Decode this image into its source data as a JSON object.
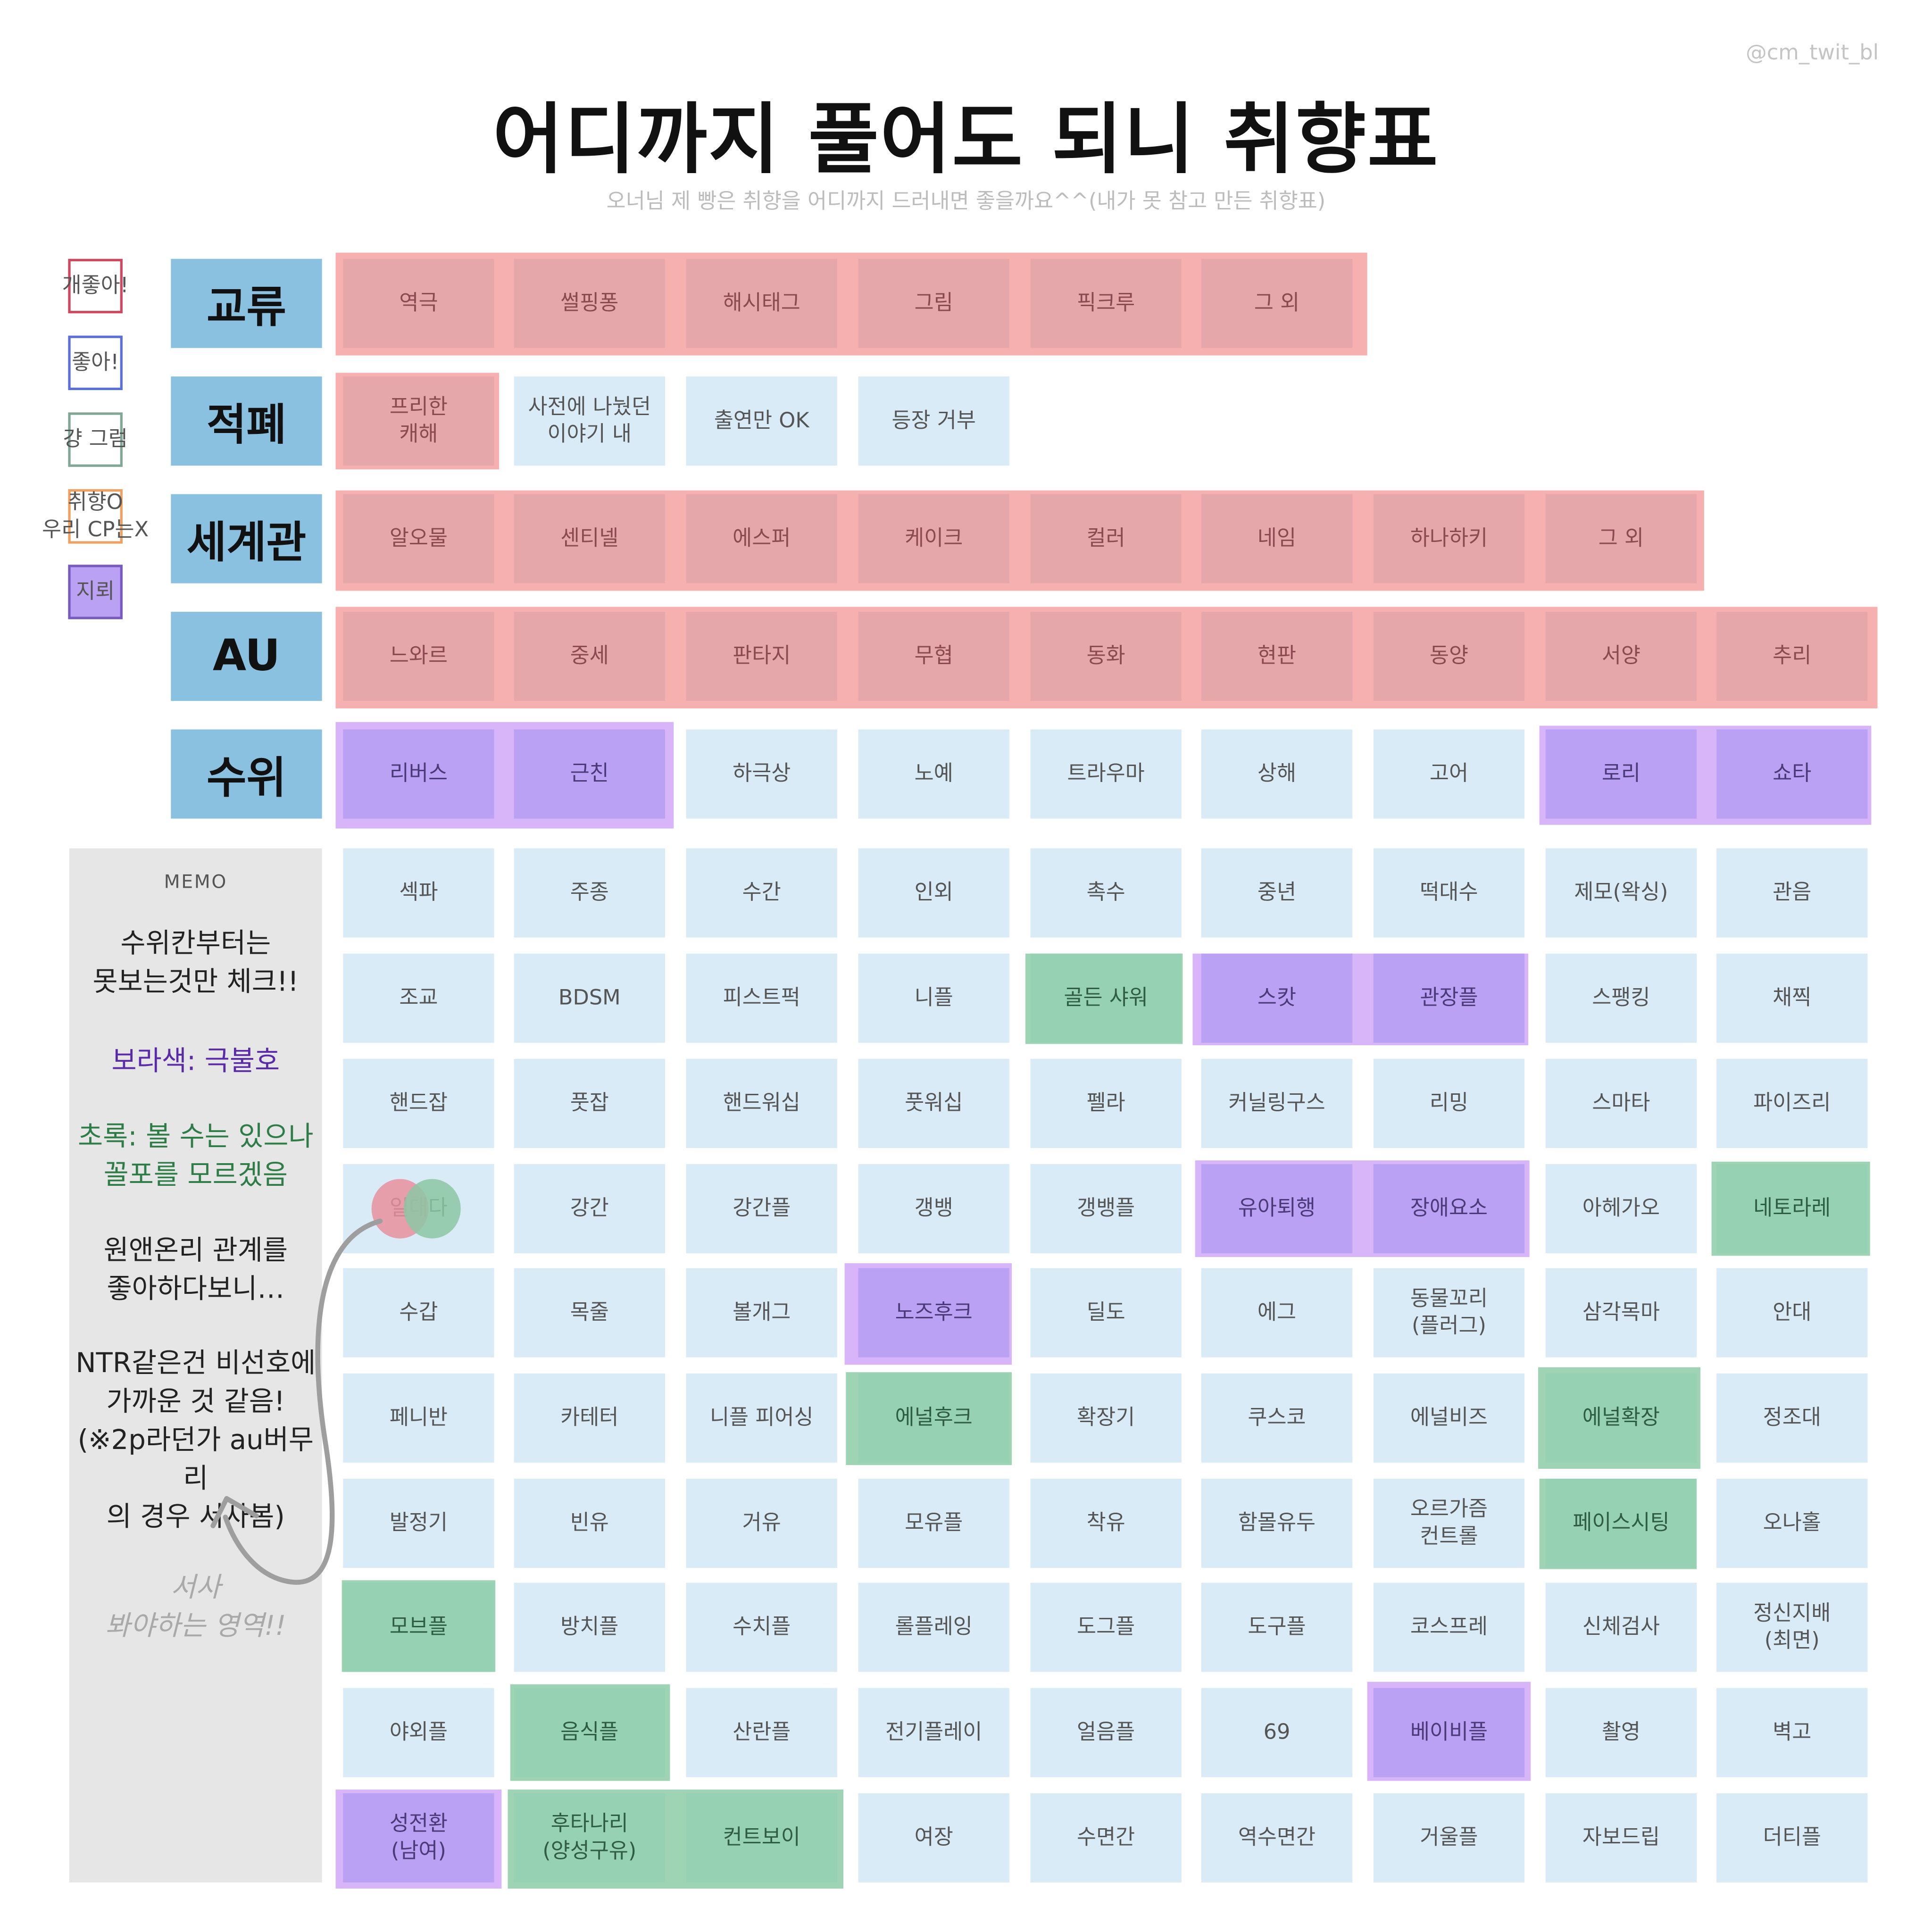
{
  "handle": "@cm_twit_bl",
  "title": "어디까지 풀어도 되니 취향표",
  "subtitle": "오너님 제 빵은 취향을 어디까지 드러내면 좋을까요^^(내가 못 참고 만든 취향표)",
  "colors": {
    "very_like": "#e6a7ab",
    "like": "#5b6fd8",
    "just_ok": "#7fa896",
    "taste_not_cp": "#f0a060",
    "mine": "#bba1f4",
    "neutral": "#d9ebf6",
    "category": "#8ac1e0",
    "green": "#96d1b3"
  },
  "legend": [
    {
      "label": "개좋아!",
      "color": "#d04860"
    },
    {
      "label": "좋아!",
      "color": "#5b6fd8"
    },
    {
      "label": "걍 그럼",
      "color": "#7fa896"
    },
    {
      "label": "취향O\n우리 CP는X",
      "color": "#f0a060"
    },
    {
      "label": "지뢰",
      "color": "#7a5abf"
    }
  ],
  "categories": [
    "교류",
    "적폐",
    "세계관",
    "AU",
    "수위"
  ],
  "rows": [
    [
      [
        "역극",
        "r"
      ],
      [
        "썰핑퐁",
        "r"
      ],
      [
        "해시태그",
        "r"
      ],
      [
        "그림",
        "r"
      ],
      [
        "픽크루",
        "r"
      ],
      [
        "그 외",
        "r"
      ]
    ],
    [
      [
        "프리한\n캐해",
        "r"
      ],
      [
        "사전에 나눴던\n이야기 내",
        "n"
      ],
      [
        "출연만 OK",
        "n"
      ],
      [
        "등장 거부",
        "n"
      ]
    ],
    [
      [
        "알오물",
        "r"
      ],
      [
        "센티넬",
        "r"
      ],
      [
        "에스퍼",
        "r"
      ],
      [
        "케이크",
        "r"
      ],
      [
        "컬러",
        "r"
      ],
      [
        "네임",
        "r"
      ],
      [
        "하나하키",
        "r"
      ],
      [
        "그 외",
        "r"
      ]
    ],
    [
      [
        "느와르",
        "r"
      ],
      [
        "중세",
        "r"
      ],
      [
        "판타지",
        "r"
      ],
      [
        "무협",
        "r"
      ],
      [
        "동화",
        "r"
      ],
      [
        "현판",
        "r"
      ],
      [
        "동양",
        "r"
      ],
      [
        "서양",
        "r"
      ],
      [
        "추리",
        "r"
      ]
    ],
    [
      [
        "리버스",
        "p"
      ],
      [
        "근친",
        "p"
      ],
      [
        "하극상",
        "n"
      ],
      [
        "노예",
        "n"
      ],
      [
        "트라우마",
        "n"
      ],
      [
        "상해",
        "n"
      ],
      [
        "고어",
        "n"
      ],
      [
        "로리",
        "p"
      ],
      [
        "쇼타",
        "p"
      ]
    ],
    [
      [
        "섹파",
        "n"
      ],
      [
        "주종",
        "n"
      ],
      [
        "수간",
        "n"
      ],
      [
        "인외",
        "n"
      ],
      [
        "촉수",
        "n"
      ],
      [
        "중년",
        "n"
      ],
      [
        "떡대수",
        "n"
      ],
      [
        "제모(왁싱)",
        "n"
      ],
      [
        "관음",
        "n"
      ]
    ],
    [
      [
        "조교",
        "n"
      ],
      [
        "BDSM",
        "n"
      ],
      [
        "피스트퍽",
        "n"
      ],
      [
        "니플",
        "n"
      ],
      [
        "골든 샤워",
        "g"
      ],
      [
        "스캇",
        "p"
      ],
      [
        "관장플",
        "p"
      ],
      [
        "스팽킹",
        "n"
      ],
      [
        "채찍",
        "n"
      ]
    ],
    [
      [
        "핸드잡",
        "n"
      ],
      [
        "풋잡",
        "n"
      ],
      [
        "핸드워십",
        "n"
      ],
      [
        "풋워십",
        "n"
      ],
      [
        "펠라",
        "n"
      ],
      [
        "커닐링구스",
        "n"
      ],
      [
        "리밍",
        "n"
      ],
      [
        "스마타",
        "n"
      ],
      [
        "파이즈리",
        "n"
      ]
    ],
    [
      [
        "일대다",
        "n"
      ],
      [
        "강간",
        "n"
      ],
      [
        "강간플",
        "n"
      ],
      [
        "갱뱅",
        "n"
      ],
      [
        "갱뱅플",
        "n"
      ],
      [
        "유아퇴행",
        "p"
      ],
      [
        "장애요소",
        "p"
      ],
      [
        "아헤가오",
        "n"
      ],
      [
        "네토라레",
        "g"
      ]
    ],
    [
      [
        "수갑",
        "n"
      ],
      [
        "목줄",
        "n"
      ],
      [
        "볼개그",
        "n"
      ],
      [
        "노즈후크",
        "p"
      ],
      [
        "딜도",
        "n"
      ],
      [
        "에그",
        "n"
      ],
      [
        "동물꼬리\n(플러그)",
        "n"
      ],
      [
        "삼각목마",
        "n"
      ],
      [
        "안대",
        "n"
      ]
    ],
    [
      [
        "페니반",
        "n"
      ],
      [
        "카테터",
        "n"
      ],
      [
        "니플 피어싱",
        "n"
      ],
      [
        "에널후크",
        "g"
      ],
      [
        "확장기",
        "n"
      ],
      [
        "쿠스코",
        "n"
      ],
      [
        "에널비즈",
        "n"
      ],
      [
        "에널확장",
        "g"
      ],
      [
        "정조대",
        "n"
      ]
    ],
    [
      [
        "발정기",
        "n"
      ],
      [
        "빈유",
        "n"
      ],
      [
        "거유",
        "n"
      ],
      [
        "모유플",
        "n"
      ],
      [
        "착유",
        "n"
      ],
      [
        "함몰유두",
        "n"
      ],
      [
        "오르가즘\n컨트롤",
        "n"
      ],
      [
        "페이스시팅",
        "g"
      ],
      [
        "오나홀",
        "n"
      ]
    ],
    [
      [
        "모브플",
        "g"
      ],
      [
        "방치플",
        "n"
      ],
      [
        "수치플",
        "n"
      ],
      [
        "롤플레잉",
        "n"
      ],
      [
        "도그플",
        "n"
      ],
      [
        "도구플",
        "n"
      ],
      [
        "코스프레",
        "n"
      ],
      [
        "신체검사",
        "n"
      ],
      [
        "정신지배\n(최면)",
        "n"
      ]
    ],
    [
      [
        "야외플",
        "n"
      ],
      [
        "음식플",
        "g"
      ],
      [
        "산란플",
        "n"
      ],
      [
        "전기플레이",
        "n"
      ],
      [
        "얼음플",
        "n"
      ],
      [
        "69",
        "n"
      ],
      [
        "베이비플",
        "p"
      ],
      [
        "촬영",
        "n"
      ],
      [
        "벽고",
        "n"
      ]
    ],
    [
      [
        "성전환\n(남여)",
        "p"
      ],
      [
        "후타나리\n(양성구유)",
        "g"
      ],
      [
        "컨트보이",
        "g"
      ],
      [
        "여장",
        "n"
      ],
      [
        "수면간",
        "n"
      ],
      [
        "역수면간",
        "n"
      ],
      [
        "거울플",
        "n"
      ],
      [
        "자보드립",
        "n"
      ],
      [
        "더티플",
        "n"
      ]
    ]
  ],
  "memo": {
    "header": "MEMO",
    "line1": "수위칸부터는\n못보는것만 체크!!",
    "line2": "보라색: 극불호",
    "line3": "초록: 볼 수는 있으나\n꼴포를 모르겠음",
    "line4": "원앤온리 관계를\n좋아하다보니…",
    "line5": "NTR같은건 비선호에\n가까운 것 같음!\n(※2p라던가 au버무리\n의 경우 서사봄)",
    "line6": "서사\n봐야하는 영역!!"
  }
}
